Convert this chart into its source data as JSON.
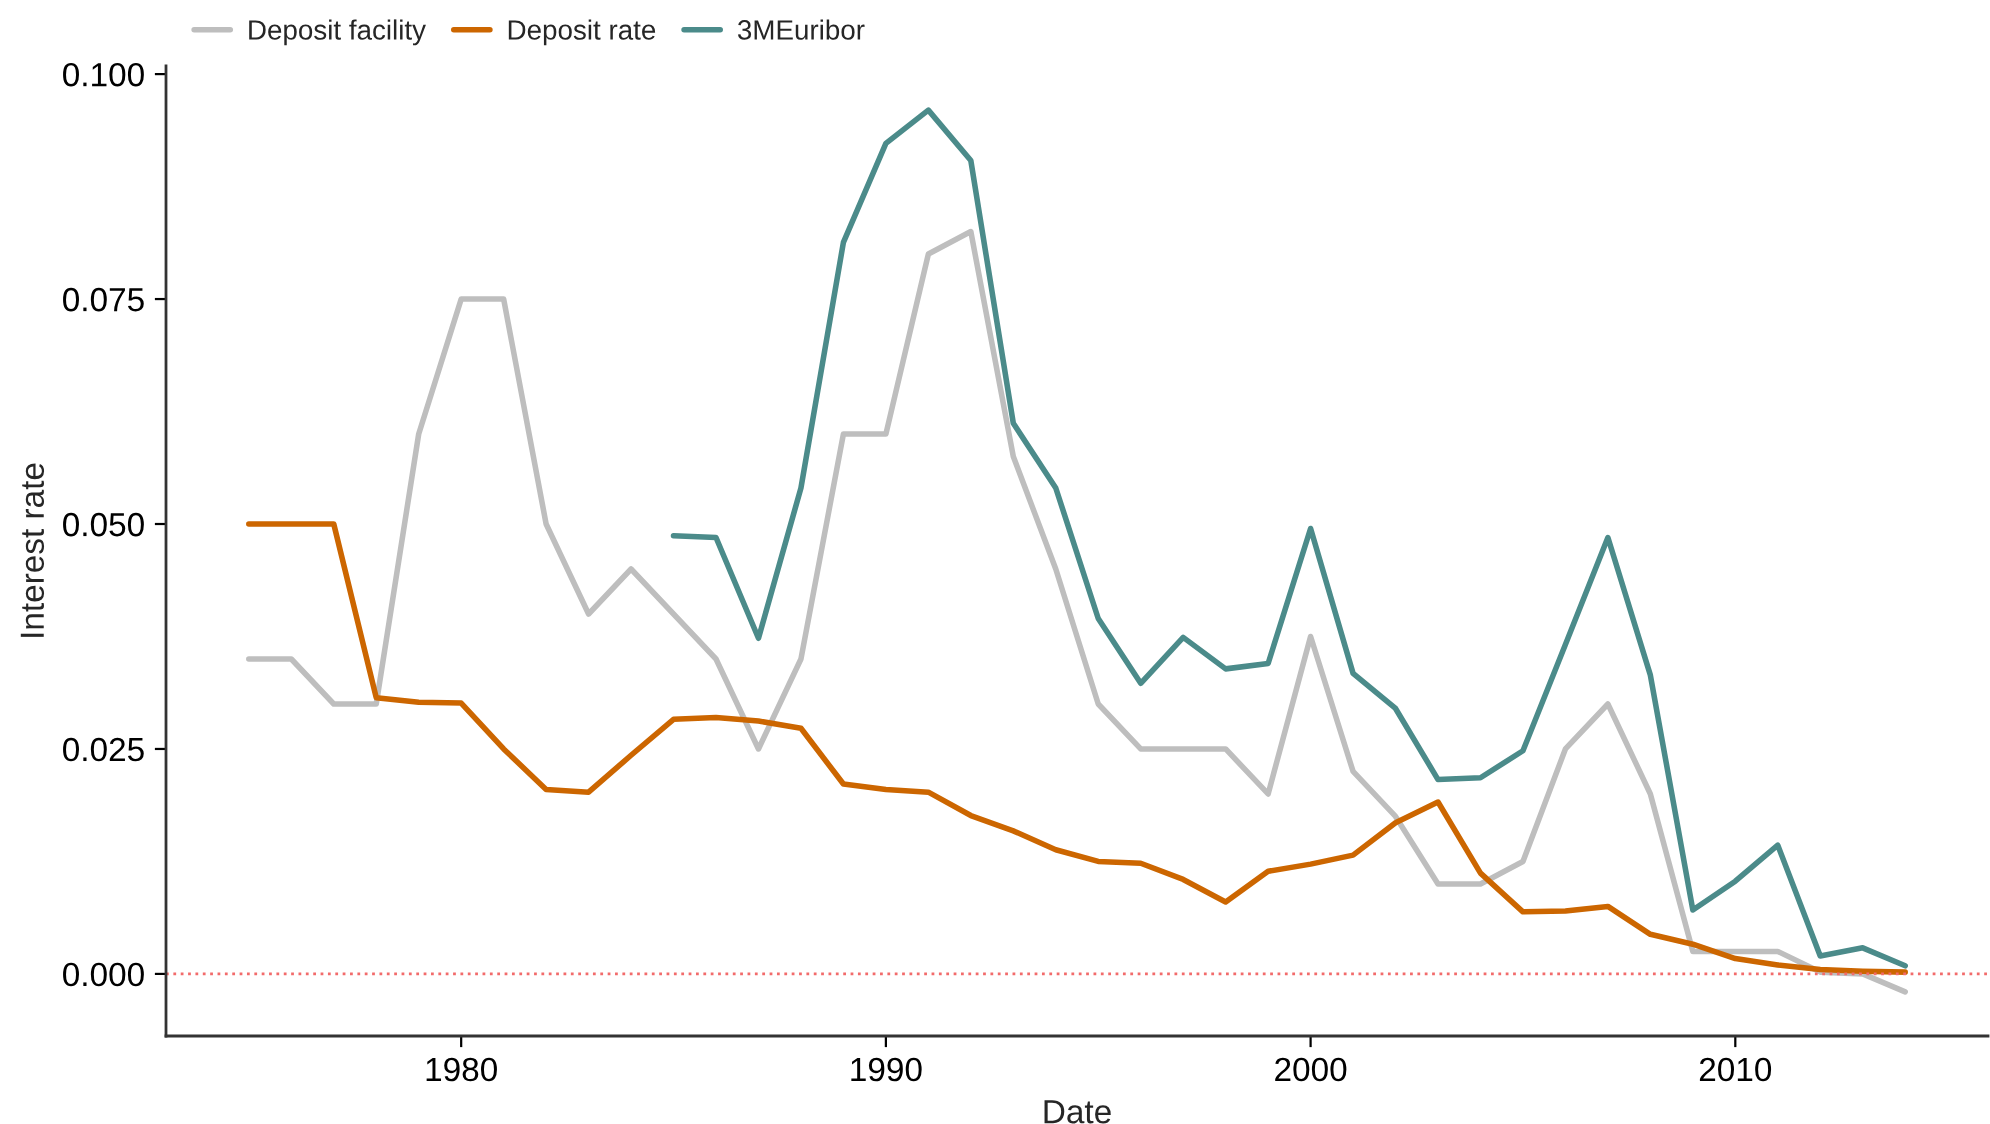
{
  "chart_data": {
    "type": "line",
    "xlabel": "Date",
    "ylabel": "Interest rate",
    "x": [
      1975,
      1976,
      1977,
      1978,
      1979,
      1980,
      1981,
      1982,
      1983,
      1984,
      1985,
      1986,
      1987,
      1988,
      1989,
      1990,
      1991,
      1992,
      1993,
      1994,
      1995,
      1996,
      1997,
      1998,
      1999,
      2000,
      2001,
      2002,
      2003,
      2004,
      2005,
      2006,
      2007,
      2008,
      2009,
      2010,
      2011,
      2012,
      2013,
      2014
    ],
    "series": [
      {
        "name": "Deposit facility",
        "color": "#bebebe",
        "values": [
          0.035,
          0.035,
          0.03,
          0.03,
          0.06,
          0.075,
          0.075,
          0.05,
          0.04,
          0.045,
          0.04,
          0.035,
          0.025,
          0.035,
          0.06,
          0.06,
          0.08,
          0.0825,
          0.0575,
          0.045,
          0.03,
          0.025,
          0.025,
          0.025,
          0.02,
          0.0375,
          0.0225,
          0.0175,
          0.01,
          0.01,
          0.0125,
          0.025,
          0.03,
          0.02,
          0.0025,
          0.0025,
          0.0025,
          0.0002,
          0.0,
          -0.002
        ]
      },
      {
        "name": "Deposit rate",
        "color": "#cc6600",
        "values": [
          0.05,
          0.05,
          0.05,
          0.0307,
          0.0302,
          0.0301,
          0.025,
          0.0205,
          0.0202,
          0.0243,
          0.0283,
          0.0285,
          0.0281,
          0.0273,
          0.0211,
          0.0205,
          0.0202,
          0.0176,
          0.0159,
          0.0138,
          0.0125,
          0.0123,
          0.0105,
          0.008,
          0.0114,
          0.0122,
          0.0132,
          0.0168,
          0.0191,
          0.0112,
          0.0069,
          0.007,
          0.0075,
          0.0044,
          0.0033,
          0.0017,
          0.001,
          0.0005,
          0.0003,
          0.0002
        ]
      },
      {
        "name": "3MEuribor",
        "color": "#4b8b8a",
        "values": [
          null,
          null,
          null,
          null,
          null,
          null,
          null,
          null,
          null,
          null,
          0.0487,
          0.0485,
          0.0373,
          0.054,
          0.0813,
          0.0923,
          0.096,
          0.0904,
          0.0612,
          0.054,
          0.0395,
          0.0323,
          0.0374,
          0.0339,
          0.0345,
          0.0495,
          0.0334,
          0.0295,
          0.0216,
          0.0218,
          0.0248,
          0.0366,
          0.0485,
          0.0332,
          0.0071,
          0.0103,
          0.0143,
          0.002,
          0.0029,
          0.0009
        ]
      }
    ],
    "xlim": [
      1973.05,
      2015.95
    ],
    "xticks": [
      1980,
      1990,
      2000,
      2010
    ],
    "ylim": [
      -0.0069,
      0.1009
    ],
    "yticks": [
      {
        "value": 0.0,
        "label": "0.000"
      },
      {
        "value": 0.025,
        "label": "0.025"
      },
      {
        "value": 0.05,
        "label": "0.050"
      },
      {
        "value": 0.075,
        "label": "0.075"
      },
      {
        "value": 0.1,
        "label": "0.100"
      }
    ],
    "ref_lines": [
      {
        "axis": "y",
        "value": 0.0,
        "color": "#f26b6b",
        "line_style": "dotted"
      }
    ],
    "legend": "top",
    "grid": false,
    "marker": "none",
    "line_style": "solid"
  }
}
